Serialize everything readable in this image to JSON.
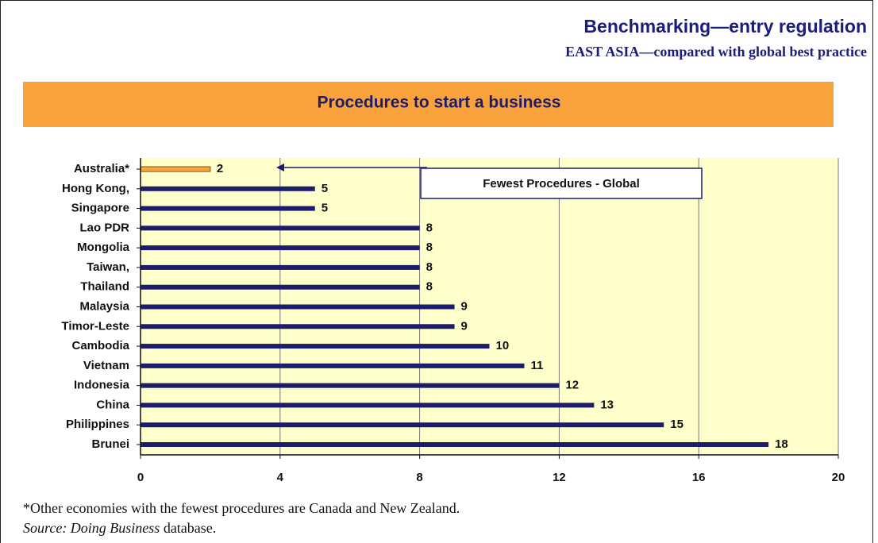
{
  "chart_data": {
    "type": "bar",
    "orientation": "horizontal",
    "title": "Benchmarking—entry regulation",
    "subtitle": "EAST ASIA—compared with global best practice",
    "chart_title": "Procedures to start a business",
    "annotation": "Fewest Procedures - Global",
    "footnote": "*Other economies with the fewest procedures are Canada and New Zealand.",
    "source": {
      "title": "Source: Doing Business",
      "rest": "database."
    },
    "categories": [
      "Australia*",
      "Hong Kong,",
      "Singapore",
      "Lao PDR",
      "Mongolia",
      "Taiwan,",
      "Thailand",
      "Malaysia",
      "Timor-Leste",
      "Cambodia",
      "Vietnam",
      "Indonesia",
      "China",
      "Philippines",
      "Brunei"
    ],
    "values": [
      2,
      5,
      5,
      8,
      8,
      8,
      8,
      9,
      9,
      10,
      11,
      12,
      13,
      15,
      18
    ],
    "colors": [
      "#f5a742",
      "#1c1c6b",
      "#1c1c6b",
      "#1c1c6b",
      "#1c1c6b",
      "#1c1c6b",
      "#1c1c6b",
      "#1c1c6b",
      "#1c1c6b",
      "#1c1c6b",
      "#1c1c6b",
      "#1c1c6b",
      "#1c1c6b",
      "#1c1c6b",
      "#1c1c6b"
    ],
    "xlim": [
      0,
      20
    ],
    "xticks": [
      0,
      4,
      8,
      12,
      16,
      20
    ],
    "grid": true
  }
}
